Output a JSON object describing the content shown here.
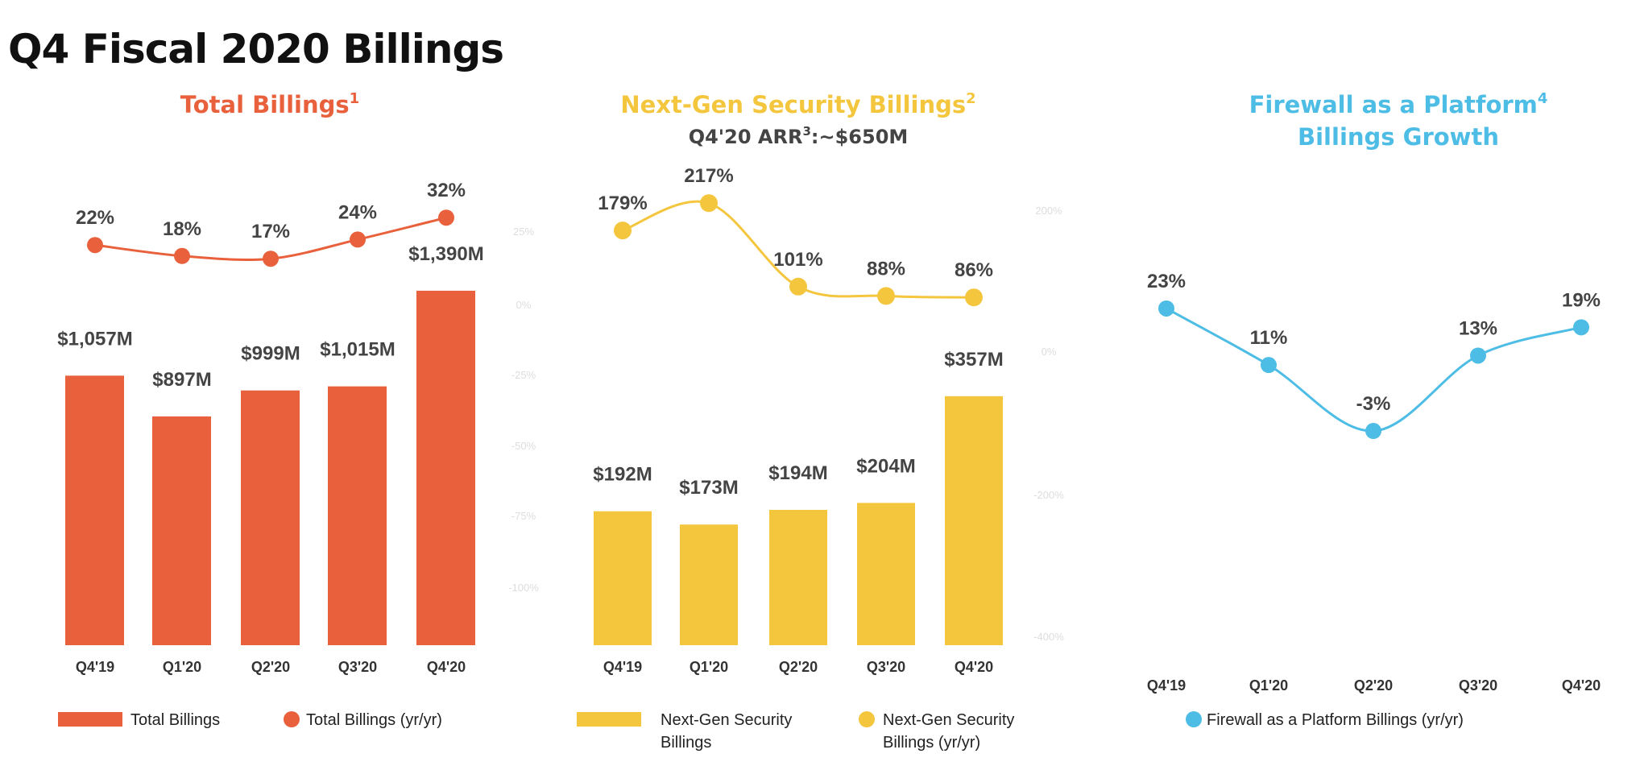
{
  "page_title": "Q4 Fiscal 2020 Billings",
  "colors": {
    "total": "#e8603c",
    "ngs": "#f4c63d",
    "fwp": "#4dbde6",
    "label": "#444444"
  },
  "chart_data": [
    {
      "type": "bar+line",
      "title": "Total Billings",
      "title_sup": "1",
      "categories": [
        "Q4'19",
        "Q1'20",
        "Q2'20",
        "Q3'20",
        "Q4'20"
      ],
      "series": [
        {
          "name": "Total Billings",
          "type": "bar",
          "values": [
            1057,
            897,
            999,
            1015,
            1390
          ],
          "labels": [
            "$1,057M",
            "$897M",
            "$999M",
            "$1,015M",
            "$1,390M"
          ]
        },
        {
          "name": "Total Billings (yr/yr)",
          "type": "line",
          "values": [
            22,
            18,
            17,
            24,
            32
          ],
          "labels": [
            "22%",
            "18%",
            "17%",
            "24%",
            "32%"
          ]
        }
      ],
      "secondary_axis_ticks": [
        "25%",
        "0%",
        "-25%",
        "-50%",
        "-75%",
        "-100%"
      ],
      "legend": [
        "Total Billings",
        "Total Billings (yr/yr)"
      ]
    },
    {
      "type": "bar+line",
      "title": "Next-Gen Security Billings",
      "title_sup": "2",
      "subtitle": "Q4'20 ARR",
      "subtitle_sup": "3",
      "subtitle_value": ":~$650M",
      "categories": [
        "Q4'19",
        "Q1'20",
        "Q2'20",
        "Q3'20",
        "Q4'20"
      ],
      "series": [
        {
          "name": "Next-Gen Security Billings",
          "type": "bar",
          "values": [
            192,
            173,
            194,
            204,
            357
          ],
          "labels": [
            "$192M",
            "$173M",
            "$194M",
            "$204M",
            "$357M"
          ]
        },
        {
          "name": "Next-Gen Security Billings (yr/yr)",
          "type": "line",
          "values": [
            179,
            217,
            101,
            88,
            86
          ],
          "labels": [
            "179%",
            "217%",
            "101%",
            "88%",
            "86%"
          ]
        }
      ],
      "secondary_axis_ticks": [
        "200%",
        "0%",
        "-200%",
        "-400%"
      ],
      "legend": [
        "Next-Gen Security Billings",
        "Next-Gen Security Billings (yr/yr)"
      ]
    },
    {
      "type": "line",
      "title": "Firewall as a Platform",
      "title_sup": "4",
      "title_line2": "Billings Growth",
      "categories": [
        "Q4'19",
        "Q1'20",
        "Q2'20",
        "Q3'20",
        "Q4'20"
      ],
      "series": [
        {
          "name": "Firewall as a Platform Billings (yr/yr)",
          "type": "line",
          "values": [
            23,
            11,
            -3,
            13,
            19
          ],
          "labels": [
            "23%",
            "11%",
            "-3%",
            "13%",
            "19%"
          ]
        }
      ],
      "legend": [
        "Firewall as a Platform Billings (yr/yr)"
      ]
    }
  ]
}
